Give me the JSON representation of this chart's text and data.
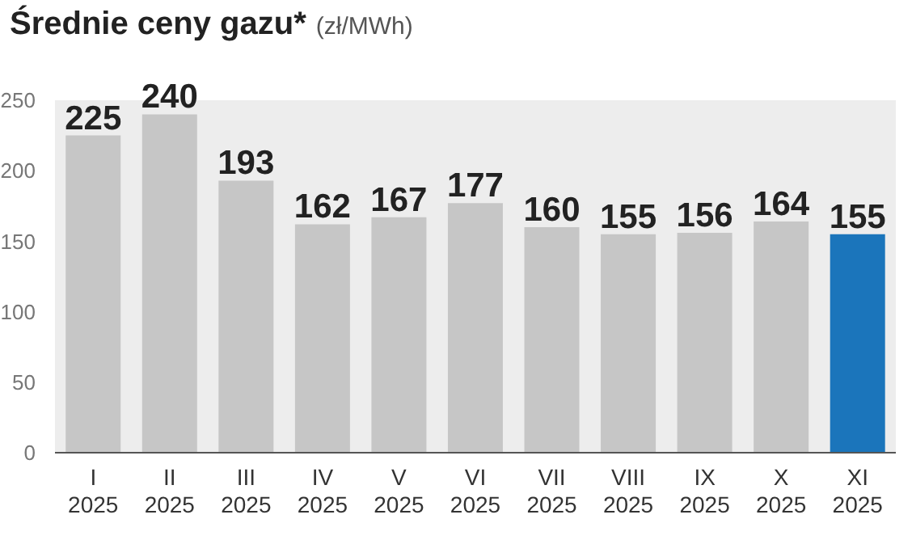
{
  "chart_data": {
    "type": "bar",
    "title": "Średnie ceny gazu*",
    "subtitle": "(zł/MWh)",
    "categories": [
      "I\n2025",
      "II\n2025",
      "III\n2025",
      "IV\n2025",
      "V\n2025",
      "VI\n2025",
      "VII\n2025",
      "VIII\n2025",
      "IX\n2025",
      "X\n2025",
      "XI\n2025"
    ],
    "values": [
      225,
      240,
      193,
      162,
      167,
      177,
      160,
      155,
      156,
      164,
      155
    ],
    "colors": [
      "#c6c6c6",
      "#c6c6c6",
      "#c6c6c6",
      "#c6c6c6",
      "#c6c6c6",
      "#c6c6c6",
      "#c6c6c6",
      "#c6c6c6",
      "#c6c6c6",
      "#c6c6c6",
      "#1b75bb"
    ],
    "ylim": [
      0,
      250
    ],
    "yticks": [
      0,
      50,
      100,
      150,
      200,
      250
    ],
    "grid": false,
    "data_labels": true
  }
}
